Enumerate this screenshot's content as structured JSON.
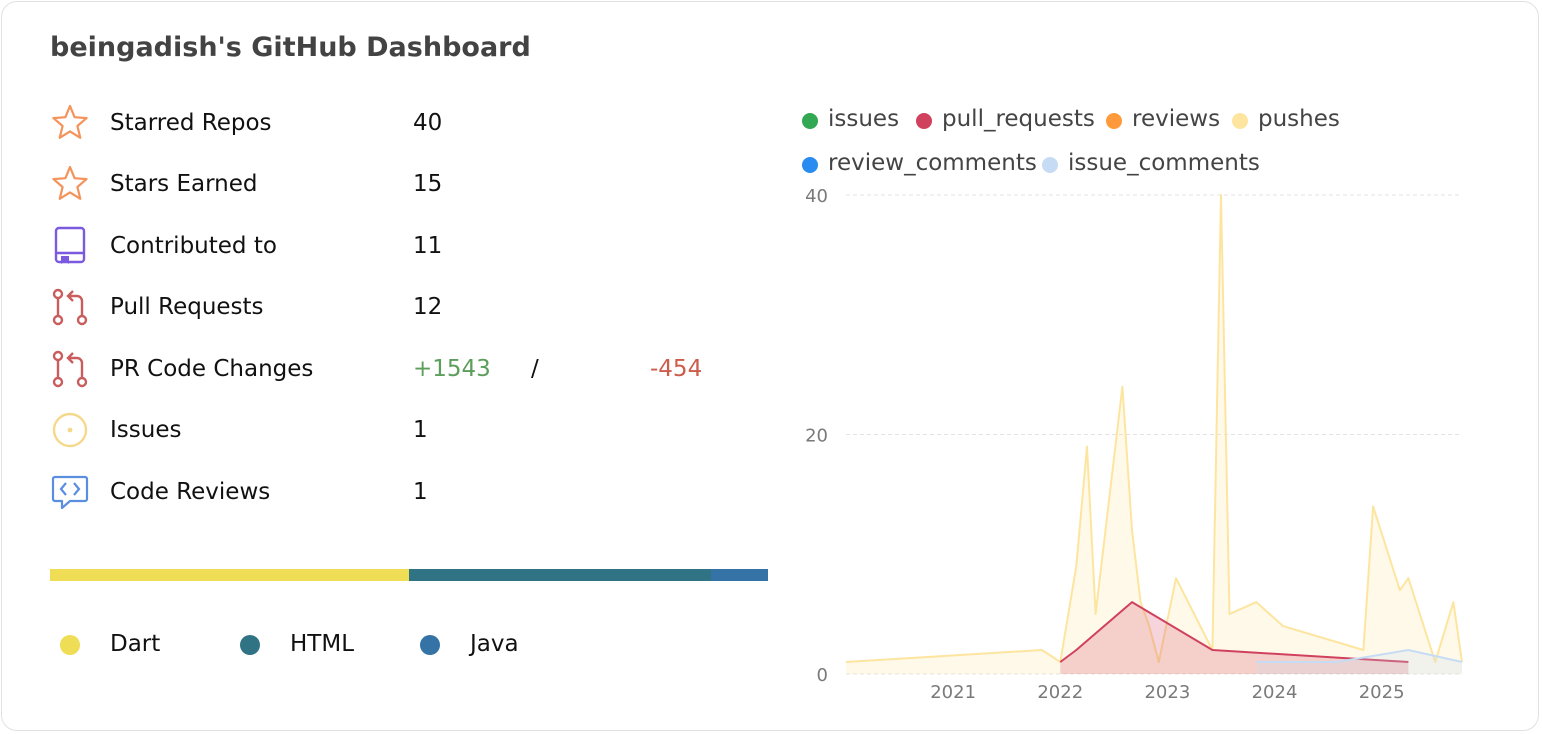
{
  "title": "beingadish's GitHub Dashboard",
  "stats": [
    {
      "label": "Starred Repos",
      "value": "40",
      "icon": "star-icon",
      "color": "#f4935a"
    },
    {
      "label": "Stars Earned",
      "value": "15",
      "icon": "star-icon",
      "color": "#f4935a"
    },
    {
      "label": "Contributed to",
      "value": "11",
      "icon": "repo-icon",
      "color": "#7b5ae0"
    },
    {
      "label": "Pull Requests",
      "value": "12",
      "icon": "pull-request-icon",
      "color": "#c95c5c"
    },
    {
      "label": "PR Code Changes",
      "additions": "+1543",
      "separator": "/",
      "deletions": "-454",
      "icon": "pull-request-icon",
      "color": "#c95c5c"
    },
    {
      "label": "Issues",
      "value": "1",
      "icon": "issue-icon",
      "color": "#f5d98b"
    },
    {
      "label": "Code Reviews",
      "value": "1",
      "icon": "code-review-icon",
      "color": "#5a8fe0"
    }
  ],
  "languages": [
    {
      "name": "Dart",
      "share": 0.5,
      "color": "#efdd56"
    },
    {
      "name": "HTML",
      "share": 0.42,
      "color": "#2f7384"
    },
    {
      "name": "Java",
      "share": 0.08,
      "color": "#3572a5"
    }
  ],
  "chart_data": {
    "type": "area",
    "legend": [
      {
        "name": "issues",
        "color": "#32a852"
      },
      {
        "name": "pull_requests",
        "color": "#d0415d"
      },
      {
        "name": "reviews",
        "color": "#ff9a3c"
      },
      {
        "name": "pushes",
        "color": "#fde5a0"
      },
      {
        "name": "review_comments",
        "color": "#2a8cf0"
      },
      {
        "name": "issue_comments",
        "color": "#c6dcf5"
      }
    ],
    "legend_placement": "top",
    "xlim": [
      2020.0,
      2025.75
    ],
    "ylim": [
      0,
      40
    ],
    "y_ticks": [
      "0",
      "20",
      "40"
    ],
    "y_tick_values": [
      0,
      20,
      40
    ],
    "x_ticks": [
      "2021",
      "2022",
      "2023",
      "2024",
      "2025"
    ],
    "x_tick_values": [
      2021,
      2022,
      2023,
      2024,
      2025
    ],
    "grid": true,
    "series": [
      {
        "name": "pushes",
        "color": "#fde5a0",
        "x": [
          2020.0,
          2021.83,
          2022.0,
          2022.15,
          2022.25,
          2022.33,
          2022.58,
          2022.67,
          2022.75,
          2022.83,
          2022.92,
          2023.08,
          2023.42,
          2023.5,
          2023.58,
          2023.83,
          2024.08,
          2024.83,
          2024.92,
          2025.17,
          2025.25,
          2025.5,
          2025.67,
          2025.75
        ],
        "y": [
          1,
          2,
          1,
          9,
          19,
          5,
          24,
          12,
          6,
          4,
          1,
          8,
          2,
          40,
          5,
          6,
          4,
          2,
          14,
          7,
          8,
          1,
          6,
          1
        ]
      },
      {
        "name": "pull_requests",
        "color": "#d0415d",
        "x": [
          2022.0,
          2022.15,
          2022.67,
          2023.42,
          2025.25
        ],
        "y": [
          1,
          2,
          6,
          2,
          1
        ]
      },
      {
        "name": "issue_comments",
        "color": "#c6dcf5",
        "x": [
          2023.83,
          2024.58,
          2025.25,
          2025.75
        ],
        "y": [
          1,
          1,
          2,
          1
        ]
      }
    ]
  }
}
